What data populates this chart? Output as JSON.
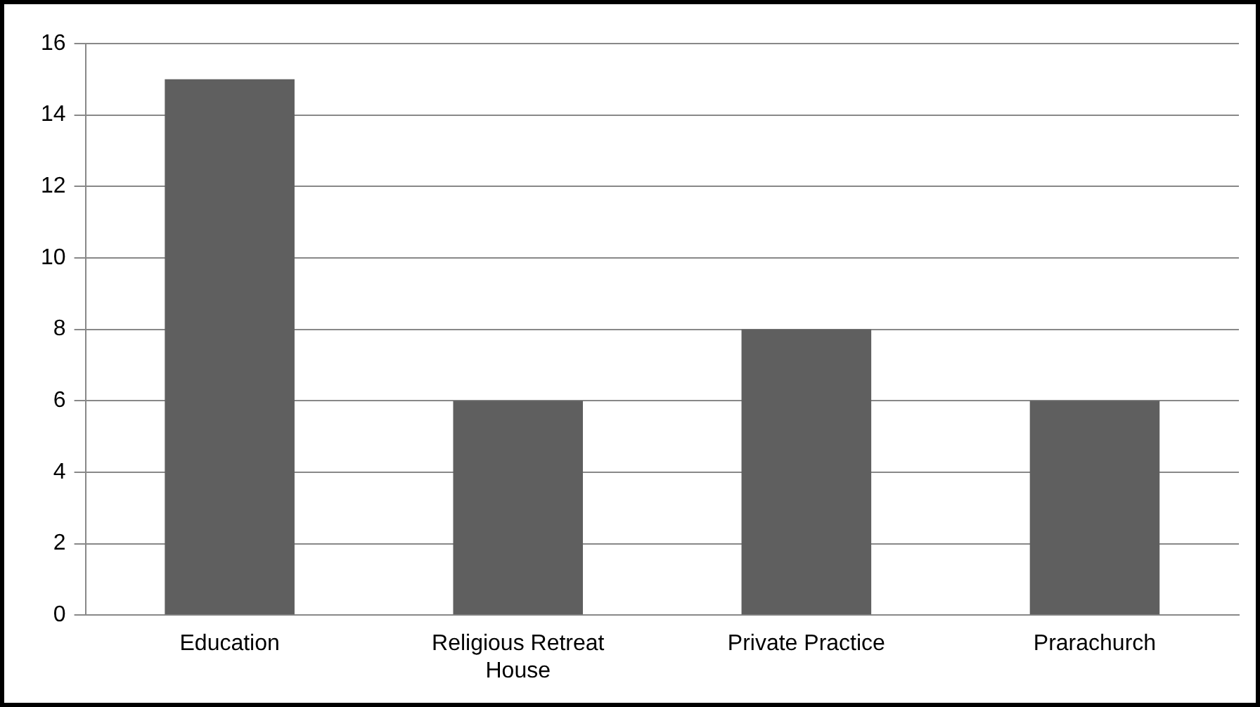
{
  "chart_data": {
    "type": "bar",
    "categories": [
      "Education",
      "Religious Retreat House",
      "Private Practice",
      "Prarachurch"
    ],
    "values": [
      15,
      6,
      8,
      6
    ],
    "color": "#5f5f5f",
    "ylim": [
      0,
      16
    ],
    "yticks": [
      0,
      2,
      4,
      6,
      8,
      10,
      12,
      14,
      16
    ],
    "grid": "y",
    "legend": false
  }
}
